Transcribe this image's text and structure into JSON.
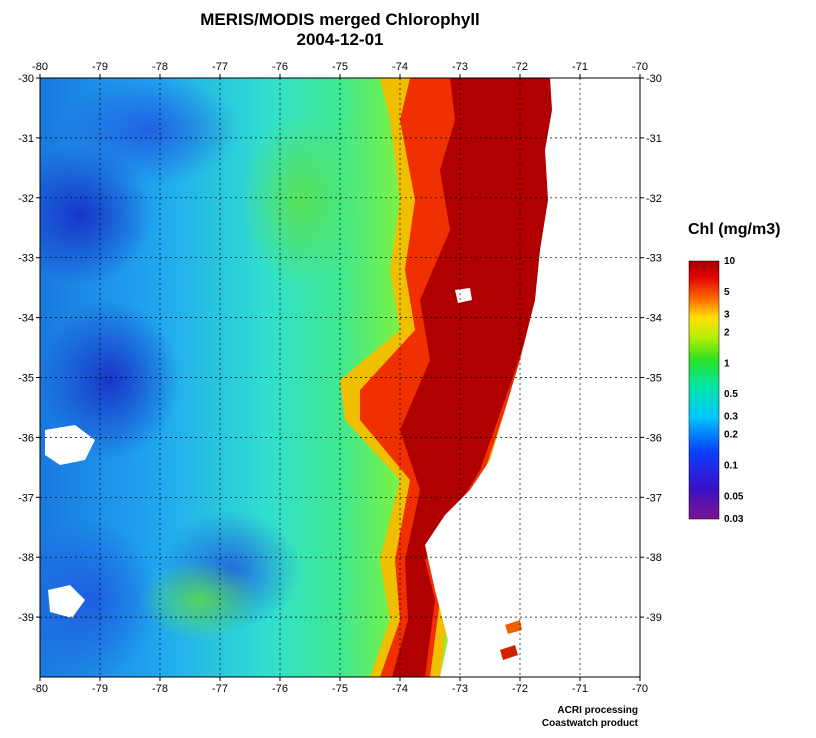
{
  "title": "MERIS/MODIS merged Chlorophyll",
  "date": "2004-12-01",
  "lon_ticks": [
    "-80",
    "-79",
    "-78",
    "-77",
    "-76",
    "-75",
    "-74",
    "-73",
    "-72",
    "-71",
    "-70"
  ],
  "lat_ticks": [
    "-30",
    "-31",
    "-32",
    "-33",
    "-34",
    "-35",
    "-36",
    "-37",
    "-38",
    "-39"
  ],
  "lon_range": [
    -80,
    -70
  ],
  "lat_range": [
    -40,
    -30
  ],
  "colorbar": {
    "title": "Chl (mg/m3)",
    "labels": [
      {
        "text": "10",
        "value": 10
      },
      {
        "text": "5",
        "value": 5
      },
      {
        "text": "3",
        "value": 3
      },
      {
        "text": "2",
        "value": 2
      },
      {
        "text": "1",
        "value": 1
      },
      {
        "text": "0.5",
        "value": 0.5
      },
      {
        "text": "0.3",
        "value": 0.3
      },
      {
        "text": "0.2",
        "value": 0.2
      },
      {
        "text": "0.1",
        "value": 0.1
      },
      {
        "text": "0.05",
        "value": 0.05
      },
      {
        "text": "0.03",
        "value": 0.03
      }
    ]
  },
  "credit_line1": "ACRI processing",
  "credit_line2": "Coastwatch product",
  "colors": {
    "high": "#aa0000",
    "mid": "#20d020",
    "low": "#1040e0",
    "land": "#ffffff",
    "grid": "#000000"
  }
}
